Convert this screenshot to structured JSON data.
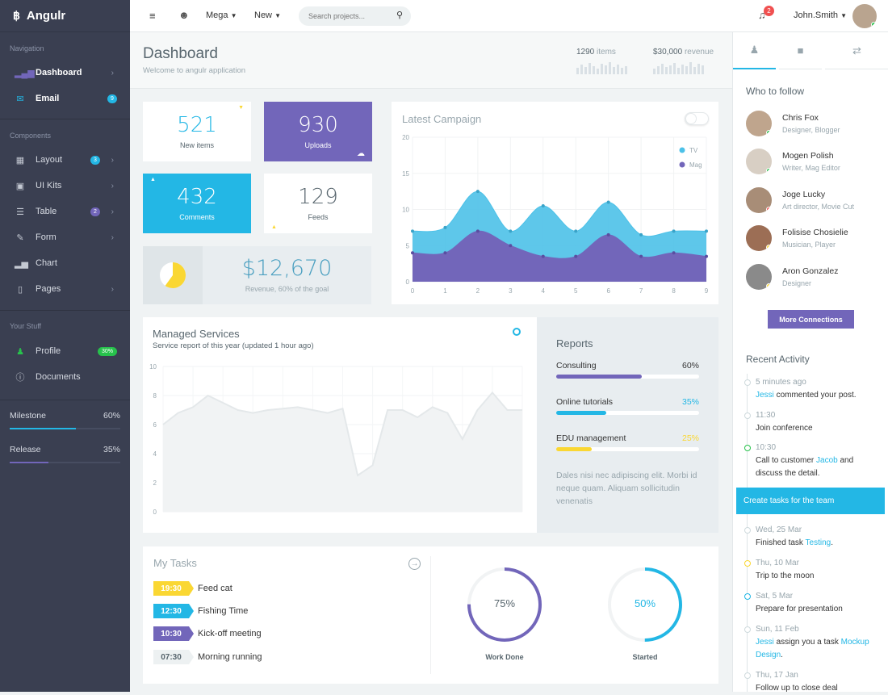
{
  "brand": {
    "name": "Angulr"
  },
  "sidebar": {
    "section_nav": "Navigation",
    "section_components": "Components",
    "section_stuff": "Your Stuff",
    "items": [
      {
        "label": "Dashboard"
      },
      {
        "label": "Email",
        "badge": "9"
      },
      {
        "label": "Layout",
        "badge": "3"
      },
      {
        "label": "UI Kits"
      },
      {
        "label": "Table",
        "badge": "2"
      },
      {
        "label": "Form"
      },
      {
        "label": "Chart"
      },
      {
        "label": "Pages"
      },
      {
        "label": "Profile",
        "badge": "30%"
      },
      {
        "label": "Documents"
      }
    ],
    "milestone": {
      "label": "Milestone",
      "value": "60%",
      "fraction": 0.6
    },
    "release": {
      "label": "Release",
      "value": "35%",
      "fraction": 0.35
    }
  },
  "header": {
    "mega": "Mega",
    "new": "New",
    "search_placeholder": "Search projects...",
    "notif_count": "2",
    "user": "John.Smith"
  },
  "titlebar": {
    "title": "Dashboard",
    "subtitle": "Welcome to angulr application",
    "items_num": "1290",
    "items_lbl": "items",
    "rev_num": "$30,000",
    "rev_lbl": "revenue"
  },
  "stats": {
    "new_items": {
      "value": "521",
      "label": "New items"
    },
    "uploads": {
      "value": "930",
      "label": "Uploads"
    },
    "comments": {
      "value": "432",
      "label": "Comments"
    },
    "feeds": {
      "value": "129",
      "label": "Feeds"
    },
    "revenue": {
      "value": "$12,670",
      "label": "Revenue, 60% of the goal",
      "fraction": 0.6
    }
  },
  "campaign": {
    "title": "Latest Campaign"
  },
  "managed": {
    "title": "Managed Services",
    "subtitle": "Service report of this year (updated 1 hour ago)"
  },
  "reports": {
    "title": "Reports",
    "rows": [
      {
        "label": "Consulting",
        "value": "60%",
        "fraction": 0.6,
        "color": "#7266ba"
      },
      {
        "label": "Online tutorials",
        "value": "35%",
        "fraction": 0.35,
        "color": "#23b7e5"
      },
      {
        "label": "EDU management",
        "value": "25%",
        "fraction": 0.25,
        "color": "#fad733"
      }
    ],
    "text": "Dales nisi nec adipiscing elit. Morbi id neque quam. Aliquam sollicitudin venenatis"
  },
  "tasks": {
    "title": "My Tasks",
    "items": [
      {
        "time": "19:30",
        "text": "Feed cat",
        "color": "#fad733"
      },
      {
        "time": "12:30",
        "text": "Fishing Time",
        "color": "#23b7e5"
      },
      {
        "time": "10:30",
        "text": "Kick-off meeting",
        "color": "#7266ba"
      },
      {
        "time": "07:30",
        "text": "Morning running",
        "color": "#edf1f2"
      }
    ],
    "work_done": {
      "value": "75%",
      "label": "Work Done",
      "fraction": 0.75
    },
    "started": {
      "value": "50%",
      "label": "Started",
      "fraction": 0.5
    }
  },
  "right": {
    "who_title": "Who to follow",
    "people": [
      {
        "name": "Chris Fox",
        "role": "Designer, Blogger",
        "status": "#27c24c"
      },
      {
        "name": "Mogen Polish",
        "role": "Writer, Mag Editor",
        "status": "#27c24c"
      },
      {
        "name": "Joge Lucky",
        "role": "Art director, Movie Cut",
        "status": "#f05050"
      },
      {
        "name": "Folisise Chosielie",
        "role": "Musician, Player",
        "status": "#fad733"
      },
      {
        "name": "Aron Gonzalez",
        "role": "Designer",
        "status": "#fad733"
      }
    ],
    "more_btn": "More Connections",
    "activity_title": "Recent Activity",
    "activity": [
      {
        "time": "5 minutes ago",
        "link": "Jessi",
        "text": " commented your post."
      },
      {
        "time": "11:30",
        "text": "Join conference"
      },
      {
        "time": "10:30",
        "pre": "Call to customer ",
        "link": "Jacob",
        "text": " and discuss the detail."
      },
      {
        "highlight": "Create tasks for the team"
      },
      {
        "time": "Wed, 25 Mar",
        "pre": "Finished task ",
        "link": "Testing",
        "text": "."
      },
      {
        "time": "Thu, 10 Mar",
        "text": "Trip to the moon"
      },
      {
        "time": "Sat, 5 Mar",
        "text": "Prepare for presentation"
      },
      {
        "time": "Sun, 11 Feb",
        "link": "Jessi",
        "text": " assign you a task ",
        "link2": "Mockup Design",
        "post": "."
      },
      {
        "time": "Thu, 17 Jan",
        "text": "Follow up to close deal"
      }
    ]
  },
  "chart_data": [
    {
      "type": "area",
      "title": "Latest Campaign",
      "x": [
        0,
        1,
        2,
        3,
        4,
        5,
        6,
        7,
        8,
        9
      ],
      "ylim": [
        0,
        20
      ],
      "yticks": [
        0,
        5,
        10,
        15,
        20
      ],
      "legend": "top-right",
      "series": [
        {
          "name": "TV",
          "color": "#4cc1e8",
          "values": [
            7,
            7.5,
            12.5,
            7,
            10.5,
            7,
            11,
            6.5,
            7,
            7
          ]
        },
        {
          "name": "Mag",
          "color": "#7266ba",
          "values": [
            4,
            4,
            7,
            5,
            3.5,
            3.5,
            6.5,
            3.5,
            4,
            3.5
          ]
        }
      ]
    },
    {
      "type": "area",
      "title": "Managed Services",
      "ylim": [
        0,
        10
      ],
      "yticks": [
        0,
        2,
        4,
        6,
        8,
        10
      ],
      "series": [
        {
          "values": [
            6,
            6.8,
            7.2,
            8,
            7.5,
            7,
            6.8,
            7,
            7.1,
            7.2,
            7,
            6.8,
            7.1,
            2.5,
            3.2,
            7,
            7,
            6.5,
            7.2,
            6.8,
            5,
            7,
            8.2,
            7,
            7
          ]
        }
      ]
    }
  ]
}
